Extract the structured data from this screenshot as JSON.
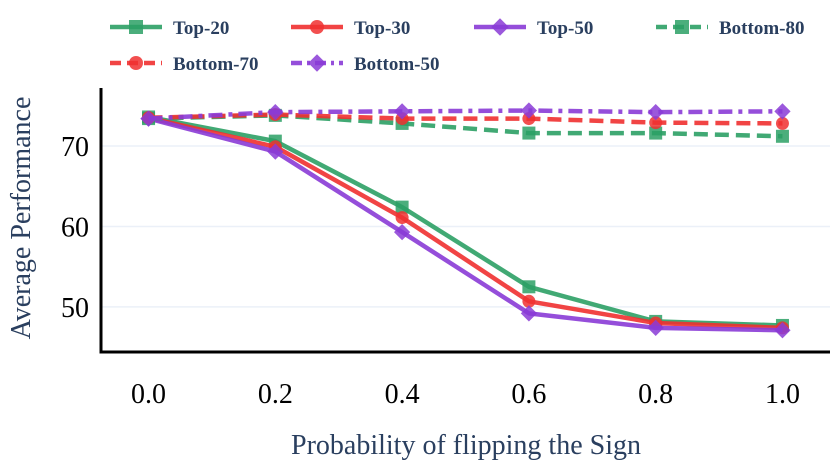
{
  "chart_data": {
    "type": "line",
    "title": "",
    "xlabel": "Probability of flipping the Sign",
    "ylabel": "Average Performance",
    "x": [
      0.0,
      0.2,
      0.4,
      0.6,
      0.8,
      1.0
    ],
    "x_tick_labels": [
      "0.0",
      "0.2",
      "0.4",
      "0.6",
      "0.8",
      "1.0"
    ],
    "y_ticks": [
      50,
      60,
      70
    ],
    "y_tick_labels": [
      "50",
      "60",
      "70"
    ],
    "xlim": [
      -0.075,
      1.075
    ],
    "ylim": [
      44.4,
      77.2
    ],
    "grid": true,
    "legend_position": "top",
    "series": [
      {
        "name": "Top-20",
        "color": "#2ca065",
        "dash": "solid",
        "marker": "square",
        "values": [
          73.6,
          70.6,
          62.4,
          52.5,
          48.2,
          47.7
        ]
      },
      {
        "name": "Top-30",
        "color": "#f03030",
        "dash": "solid",
        "marker": "circle",
        "values": [
          73.5,
          69.9,
          61.1,
          50.7,
          48.0,
          47.4
        ]
      },
      {
        "name": "Top-50",
        "color": "#8a3bd6",
        "dash": "solid",
        "marker": "diamond",
        "values": [
          73.4,
          69.3,
          59.3,
          49.2,
          47.4,
          47.1
        ]
      },
      {
        "name": "Bottom-80",
        "color": "#2ca065",
        "dash": "dash",
        "marker": "square",
        "values": [
          73.4,
          73.8,
          72.8,
          71.6,
          71.6,
          71.2
        ]
      },
      {
        "name": "Bottom-70",
        "color": "#f03030",
        "dash": "dash",
        "marker": "circle",
        "values": [
          73.5,
          73.9,
          73.4,
          73.4,
          72.9,
          72.8
        ]
      },
      {
        "name": "Bottom-50",
        "color": "#8a3bd6",
        "dash": "dashdot",
        "marker": "diamond",
        "values": [
          73.4,
          74.2,
          74.3,
          74.4,
          74.2,
          74.3
        ]
      }
    ]
  }
}
